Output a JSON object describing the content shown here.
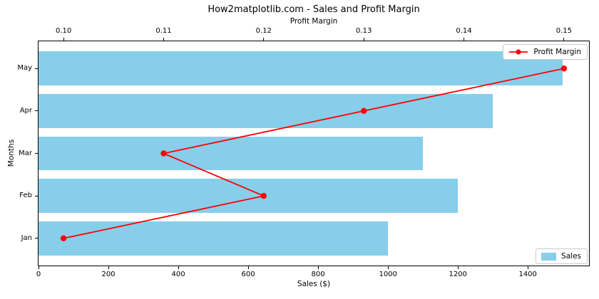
{
  "title": "How2matplotlib.com - Sales and Profit Margin",
  "chart_data": {
    "type": "bar",
    "subtype": "horizontal-bars-with-line-overlay",
    "categories": [
      "Jan",
      "Feb",
      "Mar",
      "Apr",
      "May"
    ],
    "series": [
      {
        "name": "Sales",
        "type": "barh",
        "values": [
          1000,
          1200,
          1100,
          1300,
          1500
        ],
        "color": "#87CEEB"
      },
      {
        "name": "Profit Margin",
        "type": "line",
        "values": [
          0.1,
          0.12,
          0.11,
          0.13,
          0.15
        ],
        "color": "#ff0000"
      }
    ],
    "xlabel_bottom": "Sales ($)",
    "xlabel_top": "Profit Margin",
    "ylabel": "Months",
    "x_bottom_ticks": [
      {
        "v": 0,
        "label": "0"
      },
      {
        "v": 200,
        "label": "200"
      },
      {
        "v": 400,
        "label": "400"
      },
      {
        "v": 600,
        "label": "600"
      },
      {
        "v": 800,
        "label": "800"
      },
      {
        "v": 1000,
        "label": "1000"
      },
      {
        "v": 1200,
        "label": "1200"
      },
      {
        "v": 1400,
        "label": "1400"
      }
    ],
    "x_top_ticks": [
      {
        "v": 0.1,
        "label": "0.10"
      },
      {
        "v": 0.11,
        "label": "0.11"
      },
      {
        "v": 0.12,
        "label": "0.12"
      },
      {
        "v": 0.13,
        "label": "0.13"
      },
      {
        "v": 0.14,
        "label": "0.14"
      },
      {
        "v": 0.15,
        "label": "0.15"
      }
    ],
    "xlim_bottom": [
      0,
      1575
    ],
    "xlim_top": [
      0.0975,
      0.1525
    ],
    "ylim": [
      -0.64,
      4.64
    ],
    "grid": false,
    "legend_top_position": "upper right",
    "legend_bottom_position": "lower right"
  }
}
